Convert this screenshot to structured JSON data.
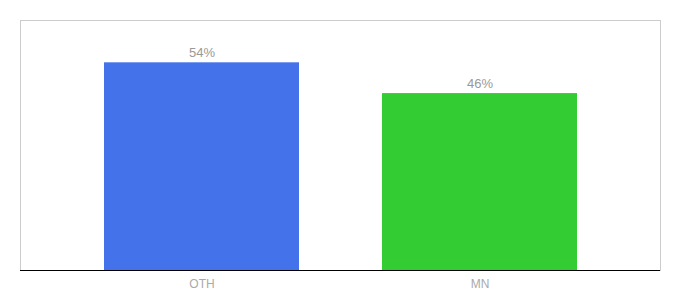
{
  "chart_data": {
    "type": "bar",
    "categories": [
      "OTH",
      "MN"
    ],
    "values": [
      54,
      46
    ],
    "value_labels": [
      "54%",
      "46%"
    ],
    "colors": [
      "#4472ea",
      "#33cc33"
    ],
    "ylim": [
      0,
      65
    ],
    "data_labels": true,
    "tick_labels": "x",
    "grid": false
  }
}
